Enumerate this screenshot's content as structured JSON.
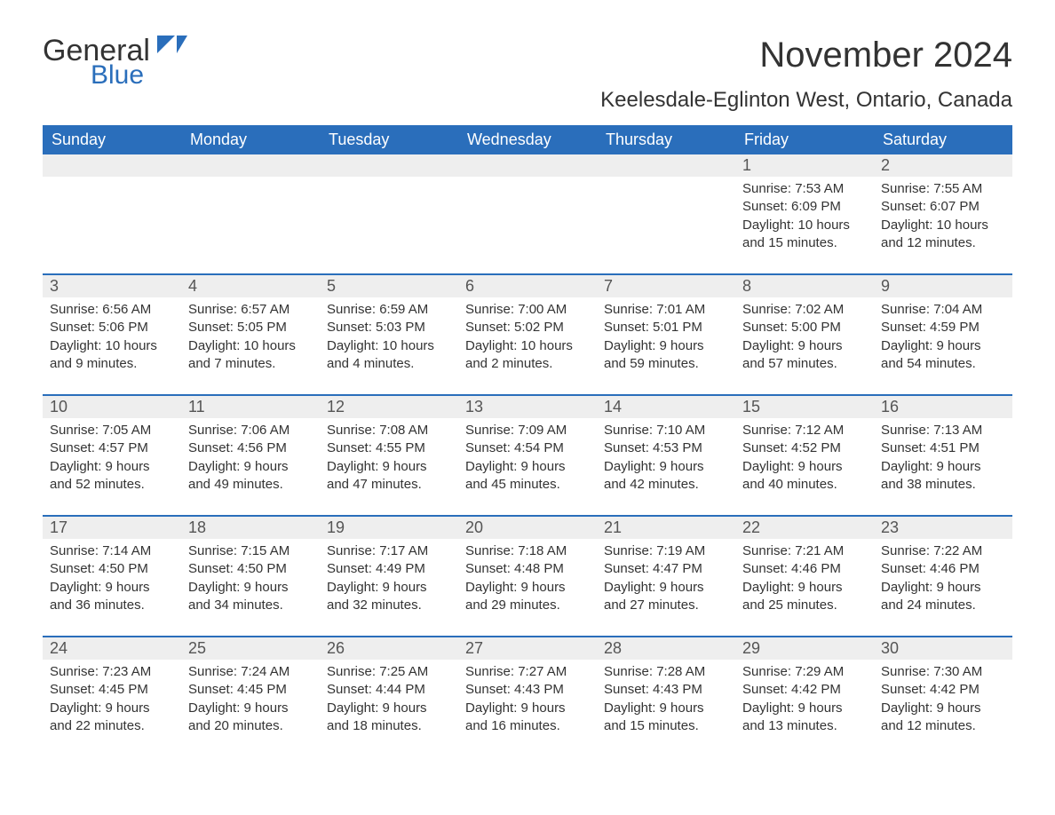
{
  "brand": {
    "word1": "General",
    "word2": "Blue",
    "flag_color": "#2a6ebb"
  },
  "title": "November 2024",
  "location": "Keelesdale-Eglinton West, Ontario, Canada",
  "colors": {
    "header_bg": "#2a6ebb",
    "header_text": "#ffffff",
    "daynum_bg": "#eeeeee",
    "body_text": "#333333",
    "page_bg": "#ffffff",
    "row_divider": "#2a6ebb"
  },
  "typography": {
    "title_fontsize": 40,
    "location_fontsize": 24,
    "weekday_fontsize": 18,
    "daynum_fontsize": 18,
    "body_fontsize": 15,
    "font_family": "Arial"
  },
  "layout": {
    "columns": 7,
    "rows": 5,
    "start_weekday": "Sunday"
  },
  "weekdays": [
    "Sunday",
    "Monday",
    "Tuesday",
    "Wednesday",
    "Thursday",
    "Friday",
    "Saturday"
  ],
  "first_day_column_index": 5,
  "days": [
    {
      "n": 1,
      "sunrise": "7:53 AM",
      "sunset": "6:09 PM",
      "daylight": "10 hours and 15 minutes."
    },
    {
      "n": 2,
      "sunrise": "7:55 AM",
      "sunset": "6:07 PM",
      "daylight": "10 hours and 12 minutes."
    },
    {
      "n": 3,
      "sunrise": "6:56 AM",
      "sunset": "5:06 PM",
      "daylight": "10 hours and 9 minutes."
    },
    {
      "n": 4,
      "sunrise": "6:57 AM",
      "sunset": "5:05 PM",
      "daylight": "10 hours and 7 minutes."
    },
    {
      "n": 5,
      "sunrise": "6:59 AM",
      "sunset": "5:03 PM",
      "daylight": "10 hours and 4 minutes."
    },
    {
      "n": 6,
      "sunrise": "7:00 AM",
      "sunset": "5:02 PM",
      "daylight": "10 hours and 2 minutes."
    },
    {
      "n": 7,
      "sunrise": "7:01 AM",
      "sunset": "5:01 PM",
      "daylight": "9 hours and 59 minutes."
    },
    {
      "n": 8,
      "sunrise": "7:02 AM",
      "sunset": "5:00 PM",
      "daylight": "9 hours and 57 minutes."
    },
    {
      "n": 9,
      "sunrise": "7:04 AM",
      "sunset": "4:59 PM",
      "daylight": "9 hours and 54 minutes."
    },
    {
      "n": 10,
      "sunrise": "7:05 AM",
      "sunset": "4:57 PM",
      "daylight": "9 hours and 52 minutes."
    },
    {
      "n": 11,
      "sunrise": "7:06 AM",
      "sunset": "4:56 PM",
      "daylight": "9 hours and 49 minutes."
    },
    {
      "n": 12,
      "sunrise": "7:08 AM",
      "sunset": "4:55 PM",
      "daylight": "9 hours and 47 minutes."
    },
    {
      "n": 13,
      "sunrise": "7:09 AM",
      "sunset": "4:54 PM",
      "daylight": "9 hours and 45 minutes."
    },
    {
      "n": 14,
      "sunrise": "7:10 AM",
      "sunset": "4:53 PM",
      "daylight": "9 hours and 42 minutes."
    },
    {
      "n": 15,
      "sunrise": "7:12 AM",
      "sunset": "4:52 PM",
      "daylight": "9 hours and 40 minutes."
    },
    {
      "n": 16,
      "sunrise": "7:13 AM",
      "sunset": "4:51 PM",
      "daylight": "9 hours and 38 minutes."
    },
    {
      "n": 17,
      "sunrise": "7:14 AM",
      "sunset": "4:50 PM",
      "daylight": "9 hours and 36 minutes."
    },
    {
      "n": 18,
      "sunrise": "7:15 AM",
      "sunset": "4:50 PM",
      "daylight": "9 hours and 34 minutes."
    },
    {
      "n": 19,
      "sunrise": "7:17 AM",
      "sunset": "4:49 PM",
      "daylight": "9 hours and 32 minutes."
    },
    {
      "n": 20,
      "sunrise": "7:18 AM",
      "sunset": "4:48 PM",
      "daylight": "9 hours and 29 minutes."
    },
    {
      "n": 21,
      "sunrise": "7:19 AM",
      "sunset": "4:47 PM",
      "daylight": "9 hours and 27 minutes."
    },
    {
      "n": 22,
      "sunrise": "7:21 AM",
      "sunset": "4:46 PM",
      "daylight": "9 hours and 25 minutes."
    },
    {
      "n": 23,
      "sunrise": "7:22 AM",
      "sunset": "4:46 PM",
      "daylight": "9 hours and 24 minutes."
    },
    {
      "n": 24,
      "sunrise": "7:23 AM",
      "sunset": "4:45 PM",
      "daylight": "9 hours and 22 minutes."
    },
    {
      "n": 25,
      "sunrise": "7:24 AM",
      "sunset": "4:45 PM",
      "daylight": "9 hours and 20 minutes."
    },
    {
      "n": 26,
      "sunrise": "7:25 AM",
      "sunset": "4:44 PM",
      "daylight": "9 hours and 18 minutes."
    },
    {
      "n": 27,
      "sunrise": "7:27 AM",
      "sunset": "4:43 PM",
      "daylight": "9 hours and 16 minutes."
    },
    {
      "n": 28,
      "sunrise": "7:28 AM",
      "sunset": "4:43 PM",
      "daylight": "9 hours and 15 minutes."
    },
    {
      "n": 29,
      "sunrise": "7:29 AM",
      "sunset": "4:42 PM",
      "daylight": "9 hours and 13 minutes."
    },
    {
      "n": 30,
      "sunrise": "7:30 AM",
      "sunset": "4:42 PM",
      "daylight": "9 hours and 12 minutes."
    }
  ],
  "labels": {
    "sunrise": "Sunrise: ",
    "sunset": "Sunset: ",
    "daylight": "Daylight: "
  }
}
